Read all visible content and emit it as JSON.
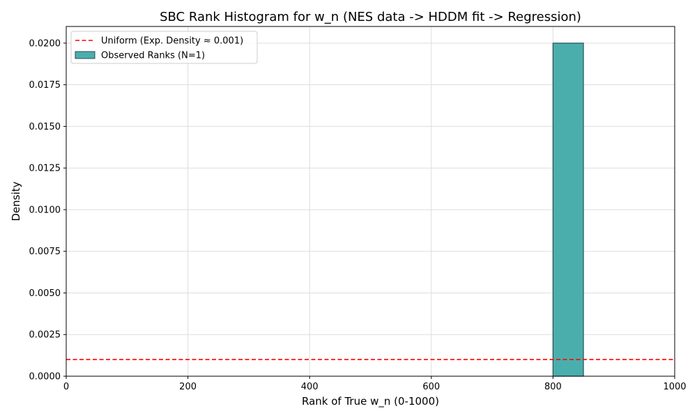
{
  "chart_data": {
    "type": "bar",
    "title": "SBC Rank Histogram for w_n (NES data -> HDDM fit -> Regression)",
    "xlabel": "Rank of True w_n (0-1000)",
    "ylabel": "Density",
    "xlim": [
      0,
      1000
    ],
    "ylim": [
      0,
      0.021
    ],
    "x_ticks": [
      0,
      200,
      400,
      600,
      800,
      1000
    ],
    "y_ticks": [
      0.0,
      0.0025,
      0.005,
      0.0075,
      0.01,
      0.0125,
      0.015,
      0.0175,
      0.02
    ],
    "x_tick_labels": [
      "0",
      "200",
      "400",
      "600",
      "800",
      "1000"
    ],
    "y_tick_labels": [
      "0.0000",
      "0.0025",
      "0.0050",
      "0.0075",
      "0.0100",
      "0.0125",
      "0.0150",
      "0.0175",
      "0.0200"
    ],
    "grid": true,
    "legend_position": "top-left",
    "bars": [
      {
        "x_start": 800,
        "x_end": 850,
        "value": 0.02
      }
    ],
    "reference_line": {
      "y": 0.001,
      "style": "dashed"
    },
    "legend": [
      {
        "label": "Uniform (Exp. Density ≈ 0.001)",
        "kind": "line",
        "color": "#ff0000"
      },
      {
        "label": "Observed Ranks (N=1)",
        "kind": "patch",
        "color": "#4aaead"
      }
    ],
    "colors": {
      "bar_fill": "#4aaead",
      "bar_edge": "#2a4f4f",
      "reference_line": "#ff0000",
      "grid": "#dddddd"
    }
  }
}
